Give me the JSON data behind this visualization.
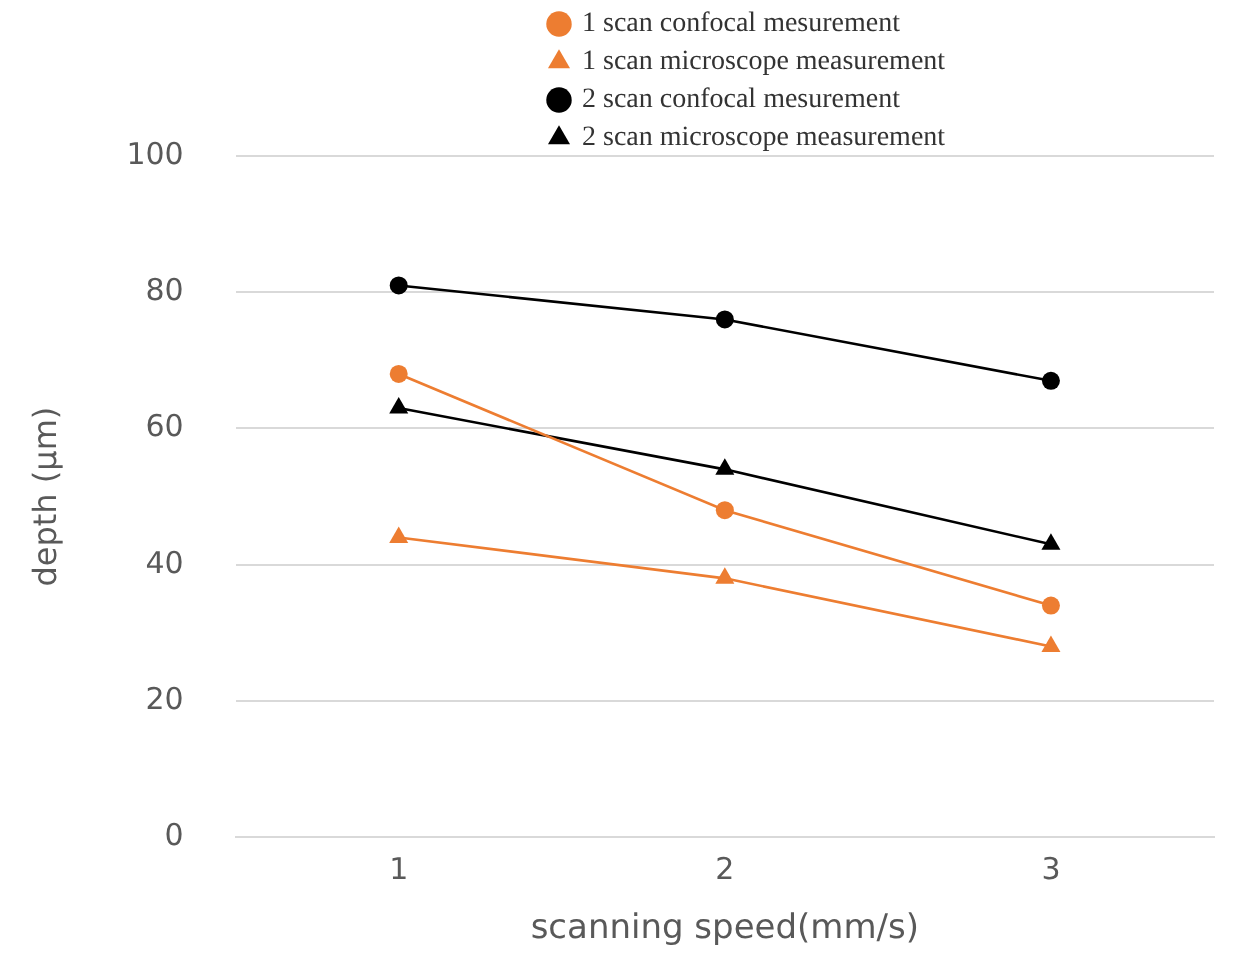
{
  "chart_data": {
    "type": "line",
    "xlabel": "scanning speed(mm/s)",
    "ylabel": "depth (μm)",
    "categories": [
      "1",
      "2",
      "3"
    ],
    "series": [
      {
        "name": "1 scan confocal mesurement",
        "color": "#ed7d31",
        "marker": "circle",
        "values": [
          68,
          48,
          34
        ]
      },
      {
        "name": "1 scan microscope measurement",
        "color": "#ed7d31",
        "marker": "triangle",
        "values": [
          44,
          38,
          28
        ]
      },
      {
        "name": "2 scan confocal mesurement",
        "color": "#000000",
        "marker": "circle",
        "values": [
          81,
          76,
          67
        ]
      },
      {
        "name": "2 scan microscope measurement",
        "color": "#000000",
        "marker": "triangle",
        "values": [
          63,
          54,
          43
        ]
      }
    ],
    "ylim": [
      0,
      100
    ],
    "yticks": [
      0,
      20,
      40,
      60,
      80,
      100
    ],
    "grid": "y",
    "legend": "top"
  }
}
